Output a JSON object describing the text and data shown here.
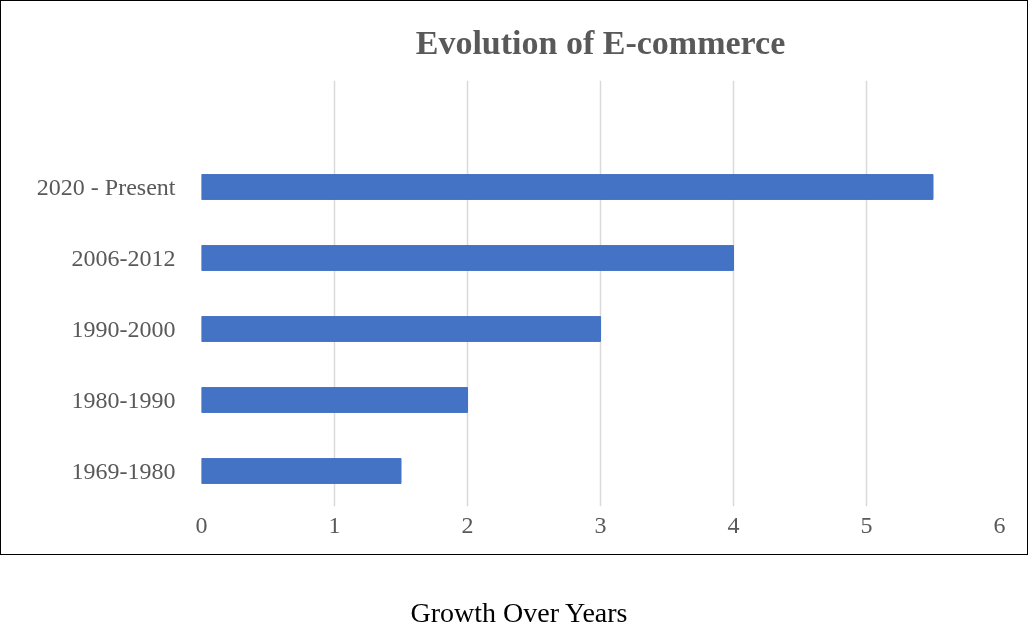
{
  "chart_data": {
    "type": "bar",
    "orientation": "horizontal",
    "title": "Evolution of E-commerce",
    "xlabel": "Growth Over Years",
    "categories": [
      null,
      "2020 - Present",
      "2006-2012",
      "1990-2000",
      "1980-1990",
      "1969-1980"
    ],
    "values": [
      null,
      5.5,
      4,
      3,
      2,
      1.5
    ],
    "color": "#4472c4",
    "xlim": [
      0,
      6
    ],
    "xticks": [
      0,
      1,
      2,
      3,
      4,
      5,
      6
    ],
    "grid": "x"
  }
}
